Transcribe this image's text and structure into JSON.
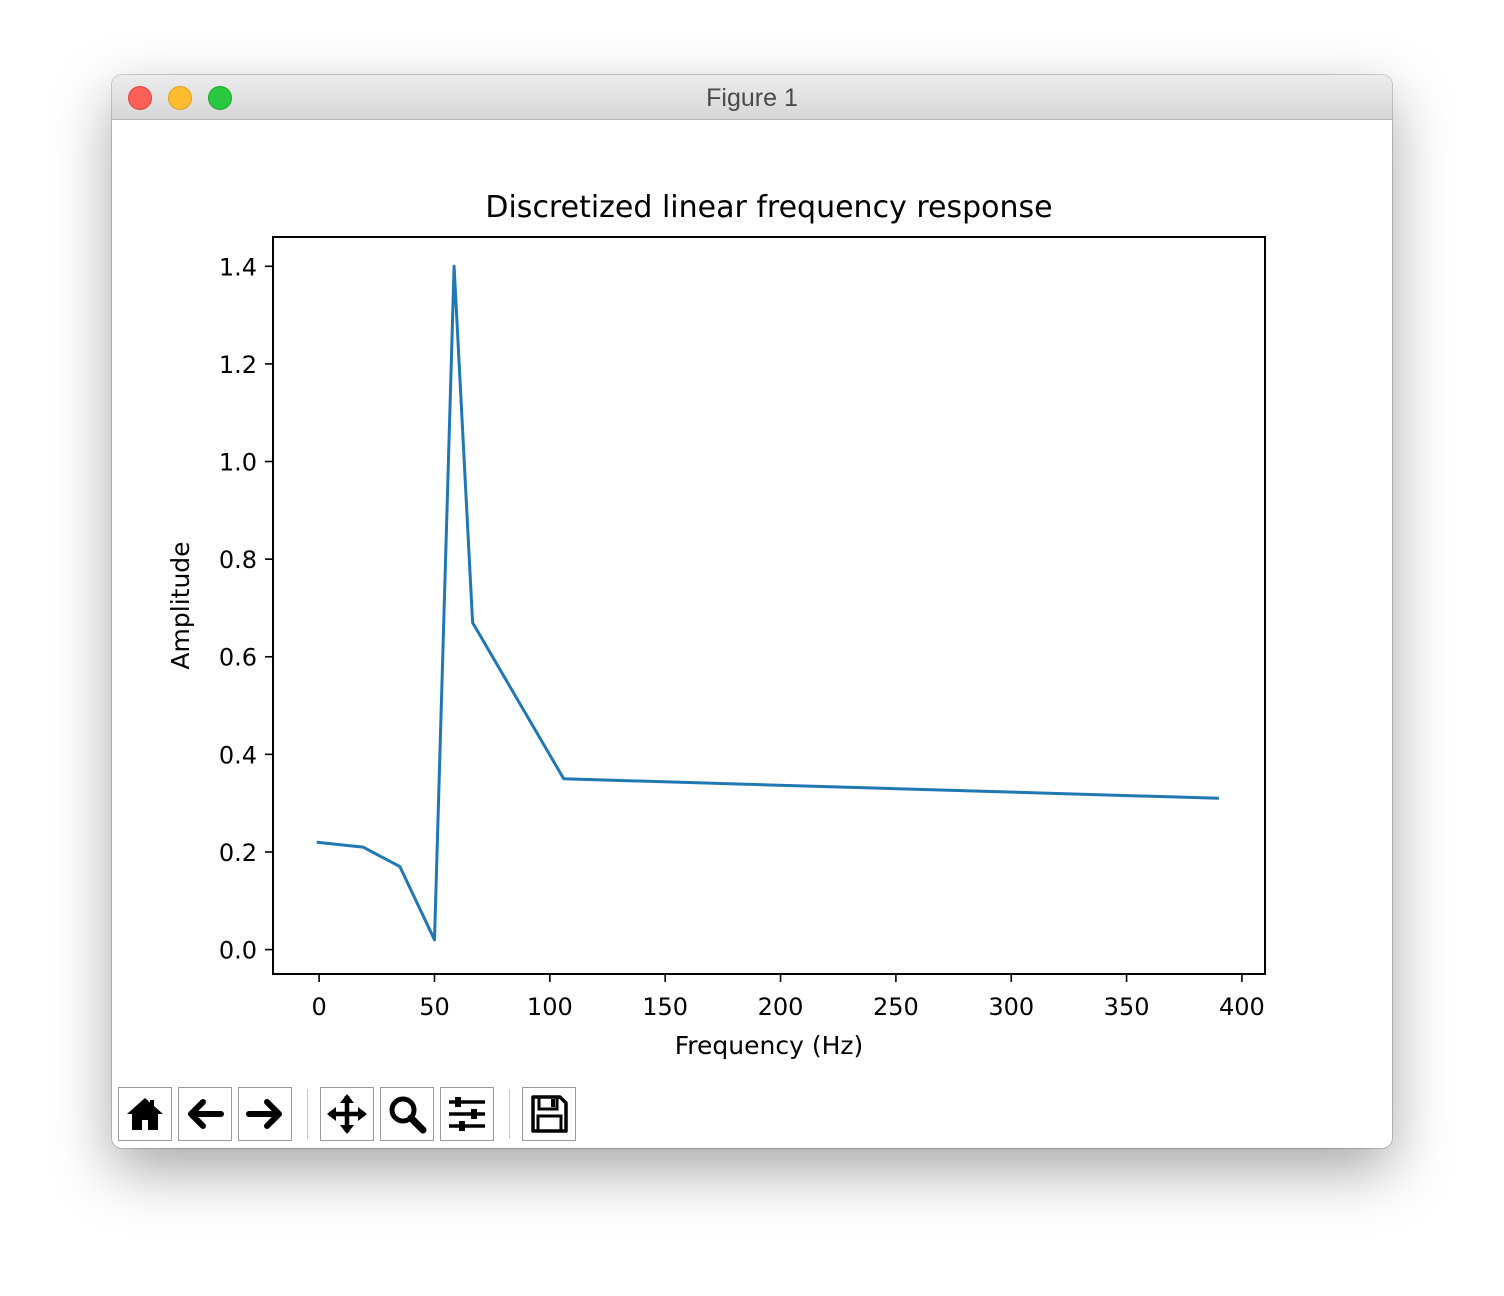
{
  "window": {
    "title": "Figure 1"
  },
  "toolbar": {
    "buttons": [
      {
        "name": "home-icon",
        "label": "Home"
      },
      {
        "name": "back-arrow-icon",
        "label": "Back"
      },
      {
        "name": "forward-arrow-icon",
        "label": "Forward"
      },
      {
        "name": "pan-icon",
        "label": "Pan"
      },
      {
        "name": "zoom-icon",
        "label": "Zoom"
      },
      {
        "name": "subplots-icon",
        "label": "Configure subplots"
      },
      {
        "name": "save-icon",
        "label": "Save"
      }
    ]
  },
  "colors": {
    "line": "#1f77b4",
    "close": "#fe5f57",
    "minimize": "#febc2e",
    "maximize": "#28c840"
  },
  "chart_data": {
    "type": "line",
    "title": "Discretized linear frequency response",
    "xlabel": "Frequency (Hz)",
    "ylabel": "Amplitude",
    "xlim": [
      -20,
      410
    ],
    "ylim": [
      -0.05,
      1.46
    ],
    "xticks": [
      0,
      50,
      100,
      150,
      200,
      250,
      300,
      350,
      400
    ],
    "xtick_labels": [
      "0",
      "50",
      "100",
      "150",
      "200",
      "250",
      "300",
      "350",
      "400"
    ],
    "yticks": [
      0.0,
      0.2,
      0.4,
      0.6,
      0.8,
      1.0,
      1.2,
      1.4
    ],
    "ytick_labels": [
      "0.0",
      "0.2",
      "0.4",
      "0.6",
      "0.8",
      "1.0",
      "1.2",
      "1.4"
    ],
    "grid": false,
    "series": [
      {
        "x": [
          -1,
          19,
          35,
          50,
          58.5,
          66.5,
          106,
          390
        ],
        "y": [
          0.22,
          0.21,
          0.17,
          0.02,
          1.4,
          0.67,
          0.35,
          0.31
        ]
      }
    ]
  }
}
